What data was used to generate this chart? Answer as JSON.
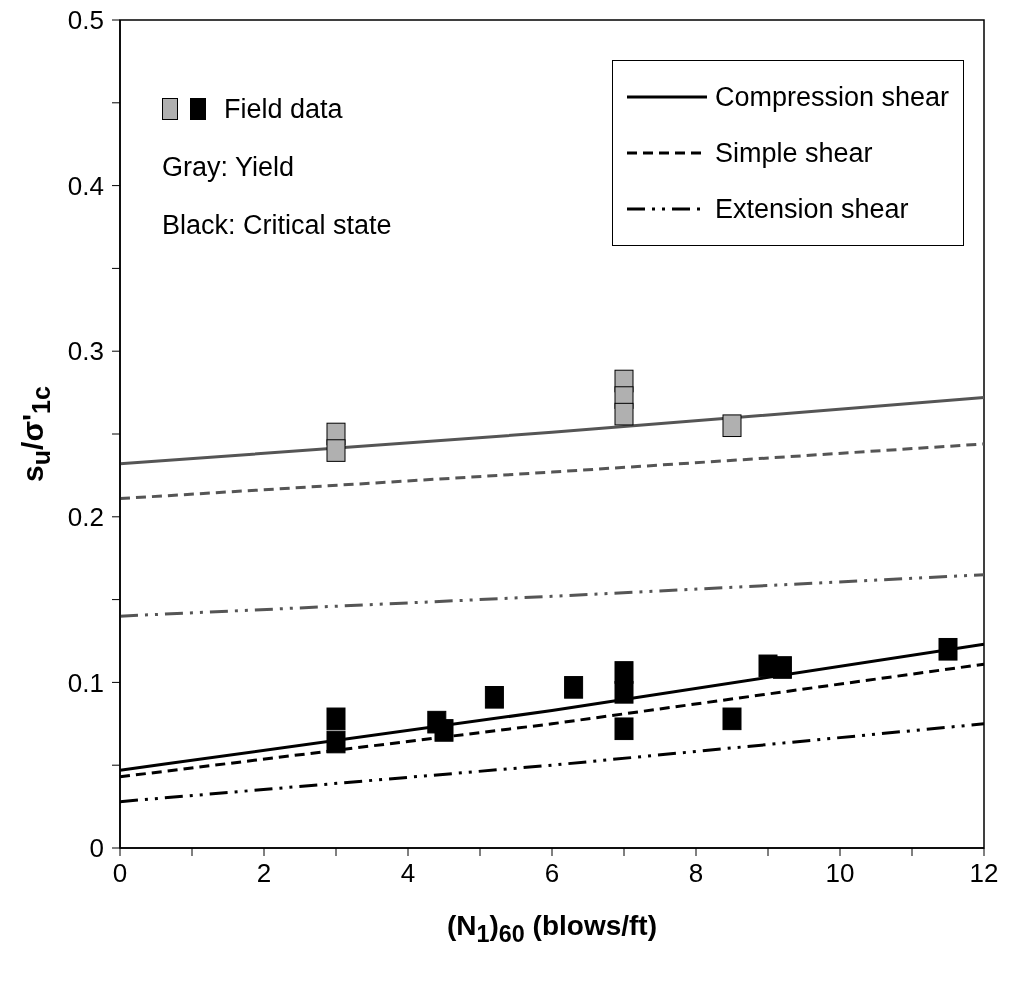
{
  "chart_data": {
    "type": "line",
    "xlabel": "(N$_{1}$)$_{60}$ (blows/ft)",
    "ylabel": "s$_{u}$/σ'$_{1c}$",
    "xlim": [
      0,
      12
    ],
    "xticks": [
      0,
      {
        "value": 1,
        "label": null
      },
      2,
      {
        "value": 3,
        "label": null
      },
      4,
      {
        "value": 5,
        "label": null
      },
      6,
      {
        "value": 7,
        "label": null
      },
      8,
      {
        "value": 9,
        "label": null
      },
      10,
      {
        "value": 11,
        "label": null
      },
      12
    ],
    "ylim": [
      0,
      0.5
    ],
    "yticks": [
      0,
      {
        "value": 0.05,
        "label": null
      },
      0.1,
      {
        "value": 0.15,
        "label": null
      },
      0.2,
      {
        "value": 0.25,
        "label": null
      },
      0.3,
      {
        "value": 0.35,
        "label": null
      },
      0.4,
      {
        "value": 0.45,
        "label": null
      },
      0.5
    ],
    "grid": false,
    "legend": "top right",
    "marker": "none",
    "annotations": [
      "Field data",
      "Gray: Yield",
      "Black: Critical state"
    ],
    "series": [
      {
        "name": "Compression shear",
        "color": "#000000",
        "line_style": "solid",
        "x": [
          0,
          6,
          12
        ],
        "values": [
          0.047,
          0.083,
          0.123
        ]
      },
      {
        "name": "Simple shear",
        "color": "#000000",
        "line_style": "dashed",
        "x": [
          0,
          6,
          12
        ],
        "values": [
          0.043,
          0.075,
          0.111
        ]
      },
      {
        "name": "Extension shear",
        "color": "#000000",
        "line_style": "dashdot",
        "x": [
          0,
          6,
          12
        ],
        "values": [
          0.028,
          0.05,
          0.075
        ]
      },
      {
        "color": "#555555",
        "line_style": "solid",
        "x": [
          0,
          6,
          12
        ],
        "values": [
          0.232,
          0.251,
          0.272
        ]
      },
      {
        "color": "#555555",
        "line_style": "dashed",
        "x": [
          0,
          6,
          12
        ],
        "values": [
          0.211,
          0.227,
          0.244
        ]
      },
      {
        "color": "#555555",
        "line_style": "dashdot",
        "x": [
          0,
          6,
          12
        ],
        "values": [
          0.14,
          0.152,
          0.165
        ]
      },
      {
        "type": "scatter",
        "marker": "square",
        "color": "#b0b0b0",
        "x": [
          3,
          3,
          7,
          7,
          7,
          8.5
        ],
        "values": [
          0.25,
          0.24,
          0.282,
          0.272,
          0.262,
          0.255
        ]
      },
      {
        "type": "scatter",
        "marker": "square",
        "color": "#000000",
        "x": [
          3,
          3,
          4.4,
          4.5,
          5.2,
          6.3,
          7,
          7,
          7,
          8.5,
          9,
          9.2,
          11.5
        ],
        "values": [
          0.078,
          0.064,
          0.076,
          0.071,
          0.091,
          0.097,
          0.106,
          0.094,
          0.072,
          0.078,
          0.11,
          0.109,
          0.12
        ]
      }
    ]
  }
}
